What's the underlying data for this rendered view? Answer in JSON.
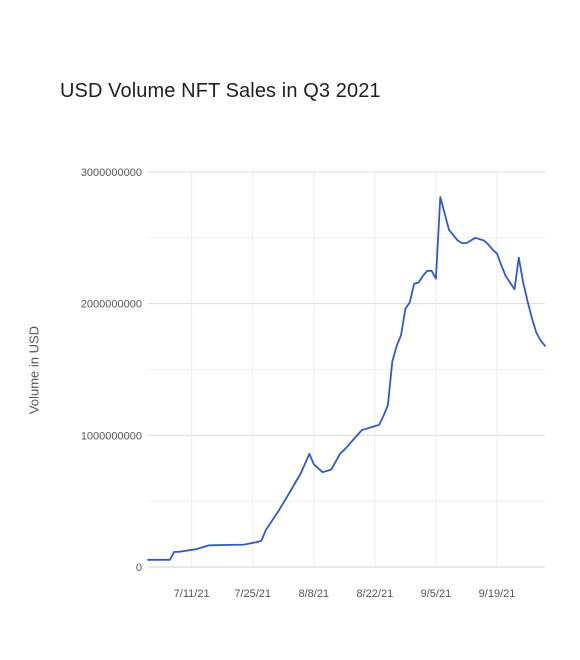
{
  "chart_data": {
    "type": "line",
    "title": "USD Volume NFT Sales in Q3 2021",
    "ylabel": "Volume in USD",
    "xlabel": "",
    "x_range": [
      "2021-07-01",
      "2021-09-30"
    ],
    "ylim": [
      0,
      3000000000
    ],
    "y_ticks": [
      0,
      1000000000,
      2000000000,
      3000000000
    ],
    "y_tick_labels": [
      "0",
      "1000000000",
      "2000000000",
      "3000000000"
    ],
    "x_ticks": [
      "2021-07-11",
      "2021-07-25",
      "2021-08-08",
      "2021-08-22",
      "2021-09-05",
      "2021-09-19"
    ],
    "x_tick_labels": [
      "7/11/21",
      "7/25/21",
      "8/8/21",
      "8/22/21",
      "9/5/21",
      "9/19/21"
    ],
    "grid": true,
    "legend": "none",
    "series": [
      {
        "color": "#3459c4",
        "x": [
          "2021-07-01",
          "2021-07-03",
          "2021-07-06",
          "2021-07-07",
          "2021-07-08",
          "2021-07-12",
          "2021-07-15",
          "2021-07-23",
          "2021-07-26",
          "2021-07-27",
          "2021-07-28",
          "2021-07-31",
          "2021-08-02",
          "2021-08-05",
          "2021-08-07",
          "2021-08-08",
          "2021-08-10",
          "2021-08-12",
          "2021-08-14",
          "2021-08-15",
          "2021-08-19",
          "2021-08-20",
          "2021-08-21",
          "2021-08-22",
          "2021-08-23",
          "2021-08-24",
          "2021-08-25",
          "2021-08-26",
          "2021-08-27",
          "2021-08-28",
          "2021-08-29",
          "2021-08-30",
          "2021-08-31",
          "2021-09-01",
          "2021-09-02",
          "2021-09-03",
          "2021-09-04",
          "2021-09-05",
          "2021-09-06",
          "2021-09-08",
          "2021-09-10",
          "2021-09-11",
          "2021-09-12",
          "2021-09-13",
          "2021-09-14",
          "2021-09-15",
          "2021-09-16",
          "2021-09-17",
          "2021-09-18",
          "2021-09-19",
          "2021-09-20",
          "2021-09-21",
          "2021-09-23",
          "2021-09-24",
          "2021-09-25",
          "2021-09-26",
          "2021-09-27",
          "2021-09-28",
          "2021-09-29",
          "2021-09-30"
        ],
        "values": [
          55000000,
          55000000,
          55000000,
          115000000,
          115000000,
          135000000,
          165000000,
          170000000,
          190000000,
          200000000,
          280000000,
          430000000,
          540000000,
          710000000,
          860000000,
          780000000,
          720000000,
          740000000,
          860000000,
          890000000,
          1040000000,
          1050000000,
          1060000000,
          1070000000,
          1080000000,
          1150000000,
          1230000000,
          1560000000,
          1680000000,
          1760000000,
          1960000000,
          2010000000,
          2150000000,
          2160000000,
          2210000000,
          2250000000,
          2250000000,
          2190000000,
          2810000000,
          2560000000,
          2480000000,
          2460000000,
          2460000000,
          2480000000,
          2500000000,
          2490000000,
          2480000000,
          2450000000,
          2410000000,
          2380000000,
          2290000000,
          2210000000,
          2110000000,
          2350000000,
          2160000000,
          2020000000,
          1890000000,
          1780000000,
          1720000000,
          1680000000
        ]
      }
    ]
  }
}
